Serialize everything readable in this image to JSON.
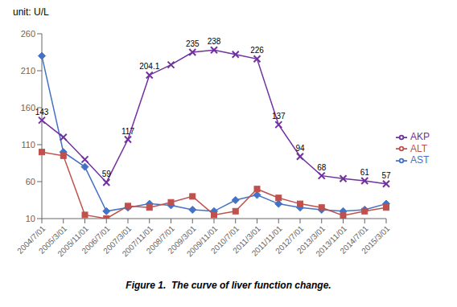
{
  "chart_data": {
    "type": "line",
    "title": "Figure 1.  The curve of liver function change.",
    "y_label": "unit: U/L",
    "categories": [
      "2004/7/01",
      "2005/3/01",
      "2005/11/01",
      "2006/7/01",
      "2007/3/01",
      "2007/11/01",
      "2008/7/01",
      "2009/3/01",
      "2009/11/01",
      "2010/7/01",
      "2011/3/01",
      "2011/11/01",
      "2012/7/01",
      "2013/3/01",
      "2013/11/01",
      "2014/7/01",
      "2015/3/01"
    ],
    "series": [
      {
        "name": "AST",
        "color": "#4472C4",
        "marker": "diamond",
        "values": [
          230,
          100,
          80,
          20,
          25,
          30,
          28,
          22,
          20,
          35,
          42,
          30,
          25,
          22,
          20,
          22,
          30
        ]
      },
      {
        "name": "ALT",
        "color": "#C0504D",
        "marker": "square",
        "values": [
          100,
          95,
          15,
          10,
          27,
          25,
          32,
          40,
          15,
          20,
          50,
          38,
          30,
          25,
          14,
          20,
          25
        ]
      },
      {
        "name": "AKP",
        "color": "#7030A0",
        "marker": "x",
        "values": [
          143,
          120,
          90,
          59,
          117,
          204.1,
          218,
          235,
          238,
          232,
          226,
          137,
          94,
          68,
          64,
          61,
          57
        ]
      }
    ],
    "ylim": [
      10,
      260
    ],
    "yticks": [
      10,
      60,
      110,
      160,
      210,
      260
    ],
    "grid": false,
    "legend": "right",
    "annotations": [
      {
        "x": "2004/7/01",
        "y": 143,
        "text": "143"
      },
      {
        "x": "2006/7/01",
        "y": 59,
        "text": "59"
      },
      {
        "x": "2007/3/01",
        "y": 117,
        "text": "117"
      },
      {
        "x": "2007/11/01",
        "y": 204.1,
        "text": "204.1"
      },
      {
        "x": "2009/3/01",
        "y": 235,
        "text": "235"
      },
      {
        "x": "2009/11/01",
        "y": 238,
        "text": "238"
      },
      {
        "x": "2011/3/01",
        "y": 226,
        "text": "226"
      },
      {
        "x": "2011/11/01",
        "y": 137,
        "text": "137"
      },
      {
        "x": "2012/7/01",
        "y": 94,
        "text": "94"
      },
      {
        "x": "2013/3/01",
        "y": 68,
        "text": "68"
      },
      {
        "x": "2014/7/01",
        "y": 61,
        "text": "61"
      },
      {
        "x": "2015/3/01",
        "y": 57,
        "text": "57"
      }
    ]
  }
}
